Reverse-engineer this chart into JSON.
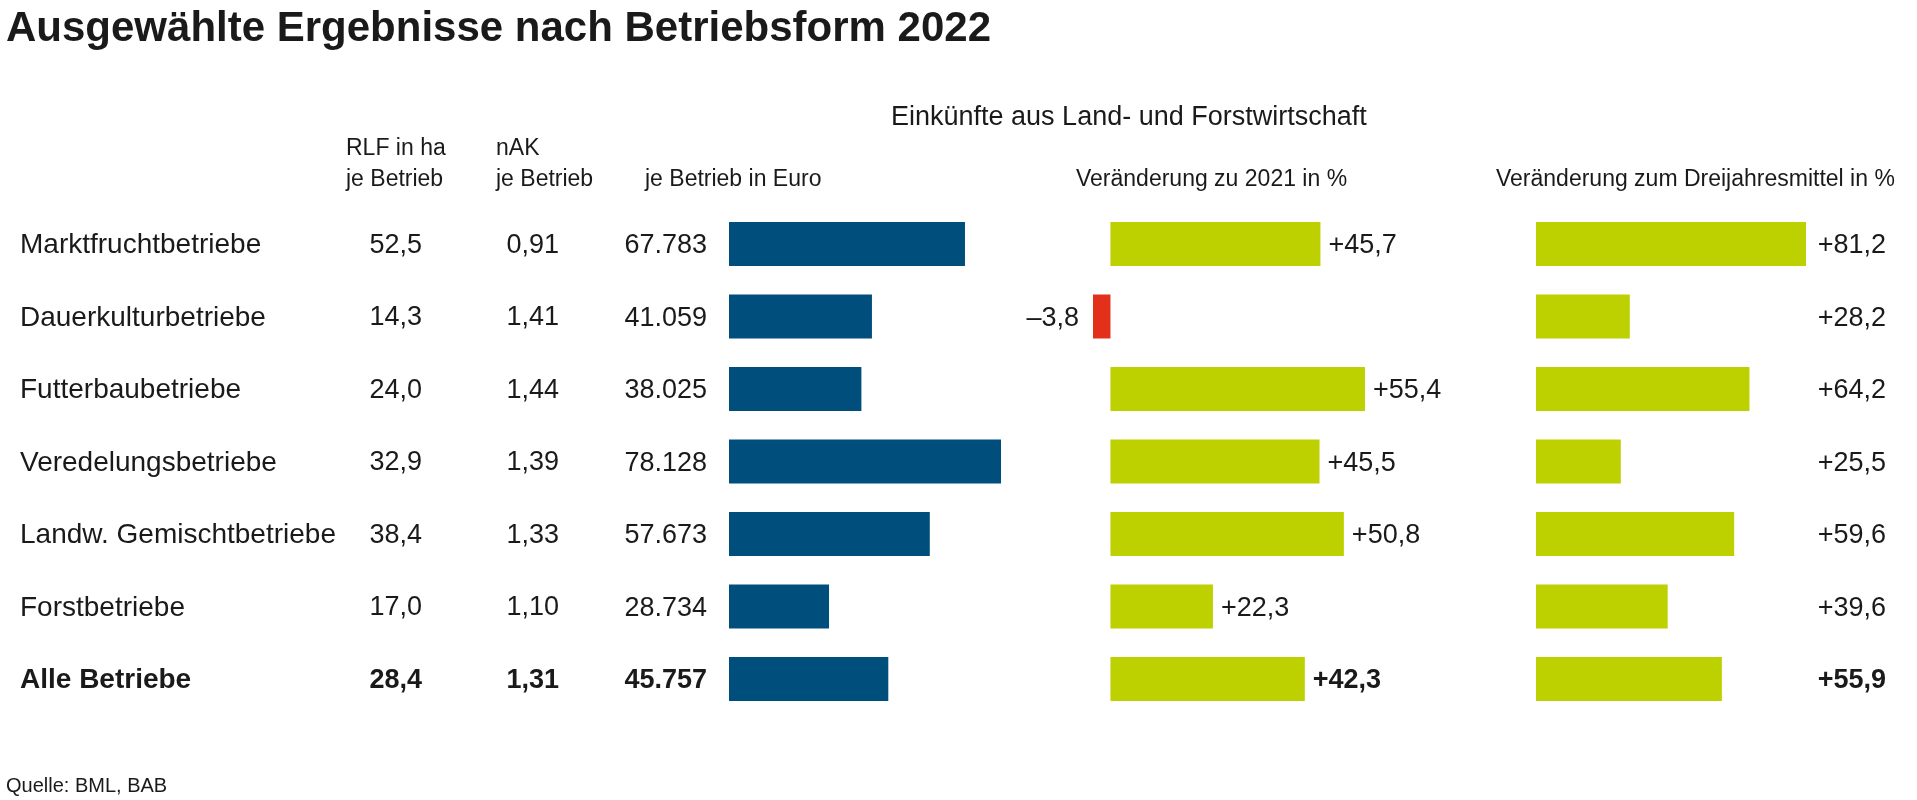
{
  "chart_data": [
    {
      "type": "heatmap",
      "title": "Ausgewählte Ergebnisse nach Betriebsform 2022",
      "categories": [
        "RLF in ha\nje Betrieb",
        "nAK\nje Betrieb"
      ],
      "y_categories": [
        "Marktfruchtbetriebe",
        "Dauerkulturbetriebe",
        "Futterbaubetriebe",
        "Veredelungsbetriebe",
        "Landw. Gemischtbetriebe",
        "Forstbetriebe",
        "Alle Betriebe"
      ],
      "cells": [
        [
          52.5,
          0.91
        ],
        [
          14.3,
          1.41
        ],
        [
          24.0,
          1.44
        ],
        [
          32.9,
          1.39
        ],
        [
          38.4,
          1.33
        ],
        [
          17.0,
          1.1
        ],
        [
          28.4,
          1.31
        ]
      ],
      "cell_labels": [
        [
          "52,5",
          "0,91"
        ],
        [
          "14,3",
          "1,41"
        ],
        [
          "24,0",
          "1,44"
        ],
        [
          "32,9",
          "1,39"
        ],
        [
          "38,4",
          "1,33"
        ],
        [
          "17,0",
          "1,10"
        ],
        [
          "28,4",
          "1,31"
        ]
      ],
      "annotations": [
        "Quelle: BML, BAB"
      ]
    },
    {
      "type": "bar",
      "orientation": "horizontal",
      "title": "Einkünfte aus Land- und Forstwirtschaft",
      "subtitle": "je Betrieb in Euro",
      "categories": [
        null,
        null,
        null,
        null,
        null,
        null,
        null
      ],
      "values": [
        67783,
        41059,
        38025,
        78128,
        57673,
        28734,
        45757
      ],
      "color": "#004e7c",
      "value_labels": [
        "67.783",
        "41.059",
        "38.025",
        "78.128",
        "57.673",
        "28.734",
        "45.757"
      ]
    },
    {
      "type": "bar",
      "orientation": "horizontal",
      "title": "Veränderung zu 2021 in %",
      "categories": [
        null,
        null,
        null,
        null,
        null,
        null,
        null
      ],
      "values": [
        45.7,
        -3.8,
        55.4,
        45.5,
        50.8,
        22.3,
        42.3
      ],
      "colors": [
        "#bdd000",
        "#e3301b",
        "#bdd000",
        "#bdd000",
        "#bdd000",
        "#bdd000",
        "#bdd000"
      ],
      "value_labels": [
        "+45,7",
        "–3,8",
        "+55,4",
        "+45,5",
        "+50,8",
        "+22,3",
        "+42,3"
      ]
    },
    {
      "type": "bar",
      "orientation": "horizontal",
      "title": "Veränderung zum Dreijahresmittel in %",
      "categories": [
        null,
        null,
        null,
        null,
        null,
        null,
        null
      ],
      "values": [
        81.2,
        28.2,
        64.2,
        25.5,
        59.6,
        39.6,
        55.9
      ],
      "color": "#bdd000",
      "value_labels": [
        "+81,2",
        "+28,2",
        "+64,2",
        "+25,5",
        "+59,6",
        "+39,6",
        "+55,9"
      ]
    }
  ]
}
